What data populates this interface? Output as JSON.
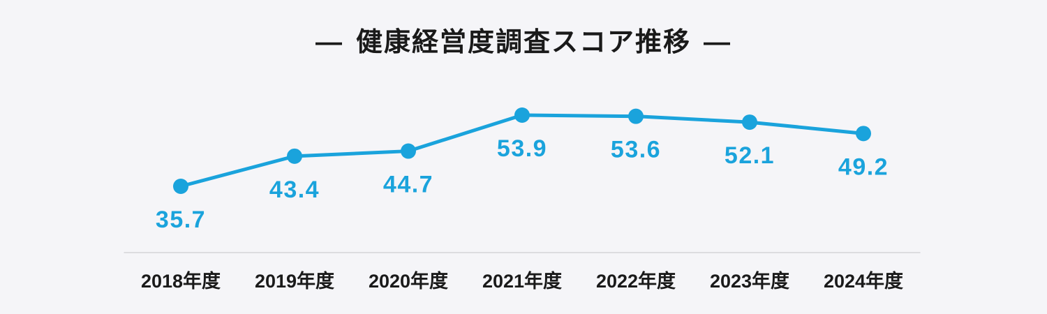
{
  "page": {
    "background_color": "#f5f5f8"
  },
  "title": {
    "dash_left": "—",
    "text": "健康経営度調査スコア推移",
    "dash_right": "—"
  },
  "chart_data": {
    "type": "line",
    "title": "健康経営度調査スコア推移",
    "categories": [
      "2018年度",
      "2019年度",
      "2020年度",
      "2021年度",
      "2022年度",
      "2023年度",
      "2024年度"
    ],
    "values": [
      35.7,
      43.4,
      44.7,
      53.9,
      53.6,
      52.1,
      49.2
    ],
    "value_labels": [
      "35.7",
      "43.4",
      "44.7",
      "53.9",
      "53.6",
      "52.1",
      "49.2"
    ],
    "xlabel": "",
    "ylabel": "",
    "grid": false,
    "legend": "none",
    "marker": "circle",
    "line_color": "#1aa3dc",
    "marker_color": "#1aa3dc",
    "value_label_color": "#1aa3dc",
    "category_label_color": "#1a1a1a",
    "baseline_color": "#dcdcdf",
    "title_color": "#1a1a1a",
    "background_color": "#f5f5f8"
  }
}
